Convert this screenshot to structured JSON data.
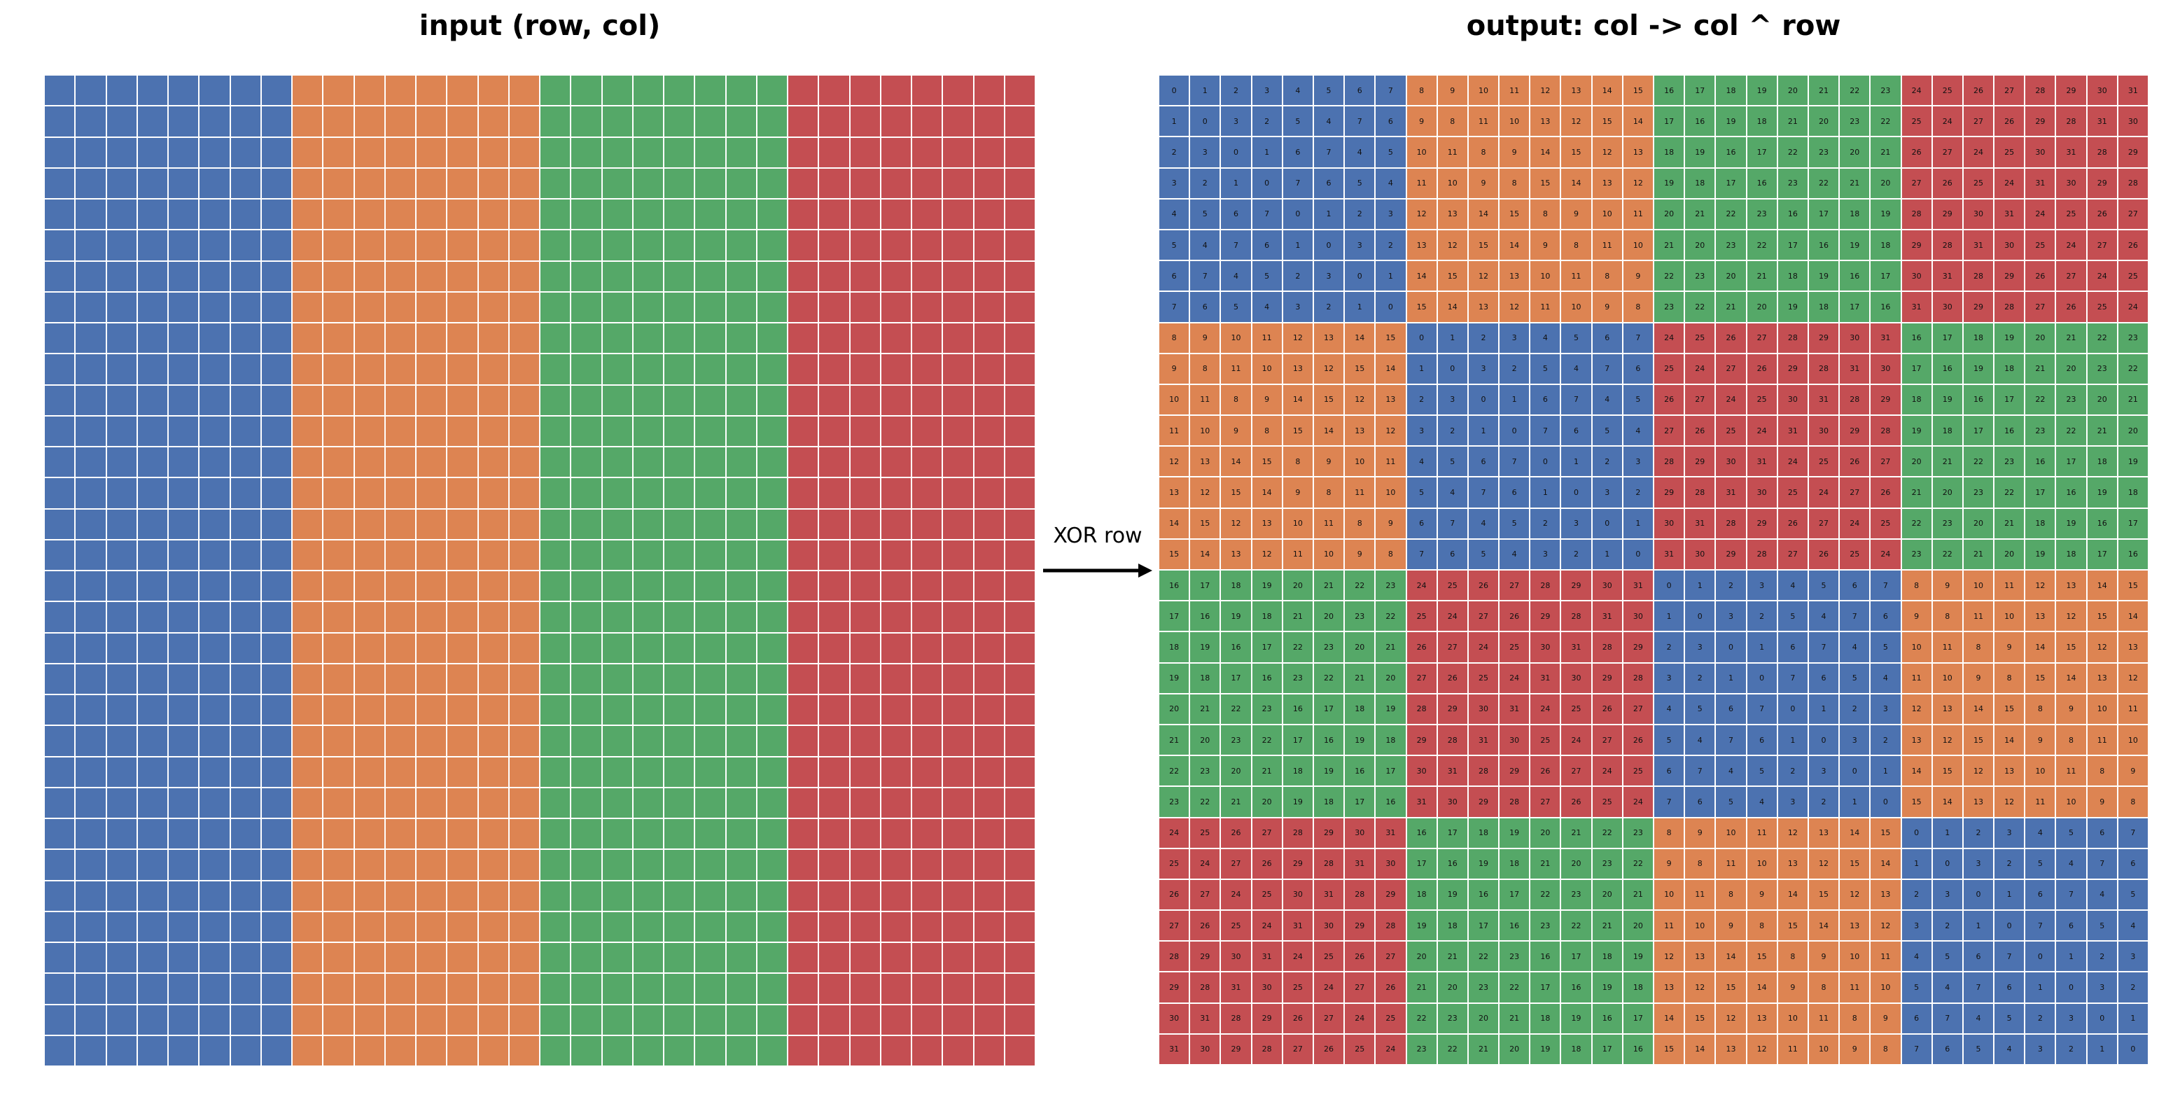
{
  "left_panel": {
    "title": "input (row, col)"
  },
  "right_panel": {
    "title": "output: col -> col ^ row"
  },
  "arrow": {
    "label": "XOR row"
  },
  "grid": {
    "rows": 32,
    "cols": 32,
    "group_size": 8
  },
  "colors": {
    "group_0": "#4c72b0",
    "group_1": "#dd8452",
    "group_2": "#55a868",
    "group_3": "#c44e52",
    "cell_border": "#ffffff",
    "text": "#111111"
  },
  "chart_data": {
    "type": "heatmap",
    "title": "output: col -> col ^ row",
    "description_rule": "cell(row, col) = col ^ row"
  }
}
